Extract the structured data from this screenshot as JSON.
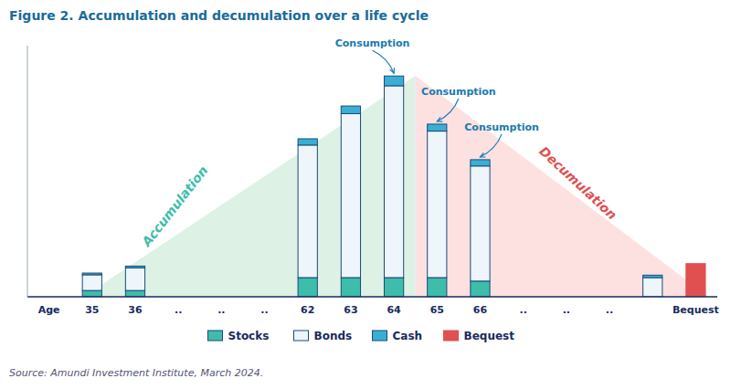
{
  "chart_data": {
    "type": "bar",
    "stacked": true,
    "title": "Figure 2. Accumulation and decumulation over a life cycle",
    "source": "Source: Amundi Investment Institute, March 2024.",
    "categories": [
      "Age",
      "35",
      "36",
      "..",
      "..",
      "..",
      "62",
      "63",
      "64",
      "65",
      "66",
      "..",
      "..",
      "..",
      null,
      "Bequest"
    ],
    "series": [
      {
        "name": "Stocks",
        "color": "#3dbdaa",
        "values": [
          null,
          0.18,
          0.18,
          null,
          null,
          null,
          0.55,
          0.55,
          0.55,
          0.55,
          0.45,
          null,
          null,
          null,
          0.0,
          0.0
        ]
      },
      {
        "name": "Bonds",
        "color": "#eef5fb",
        "values": [
          null,
          0.45,
          0.65,
          null,
          null,
          null,
          3.8,
          4.7,
          5.5,
          4.2,
          3.3,
          null,
          null,
          null,
          0.55,
          0.0
        ]
      },
      {
        "name": "Cash",
        "color": "#3aafd4",
        "values": [
          null,
          0.05,
          0.05,
          null,
          null,
          null,
          0.18,
          0.22,
          0.28,
          0.2,
          0.18,
          null,
          null,
          null,
          0.07,
          0.0
        ]
      },
      {
        "name": "Bequest",
        "color": "#e05050",
        "values": [
          null,
          0.0,
          0.0,
          null,
          null,
          null,
          0.0,
          0.0,
          0.0,
          0.0,
          0.0,
          null,
          null,
          null,
          0.0,
          0.95
        ]
      }
    ],
    "ylim": [
      0,
      7.2
    ],
    "tick_labels": "x",
    "legend": "bottom",
    "annotations": [
      {
        "text": "Accumulation",
        "color": "#3dbdaa"
      },
      {
        "text": "Decumulation",
        "color": "#e05050"
      },
      {
        "text": "Consumption",
        "color": "#1a7ab0",
        "category": "64"
      },
      {
        "text": "Consumption",
        "color": "#1a7ab0",
        "category": "65"
      },
      {
        "text": "Consumption",
        "color": "#1a7ab0",
        "category": "66"
      }
    ]
  }
}
